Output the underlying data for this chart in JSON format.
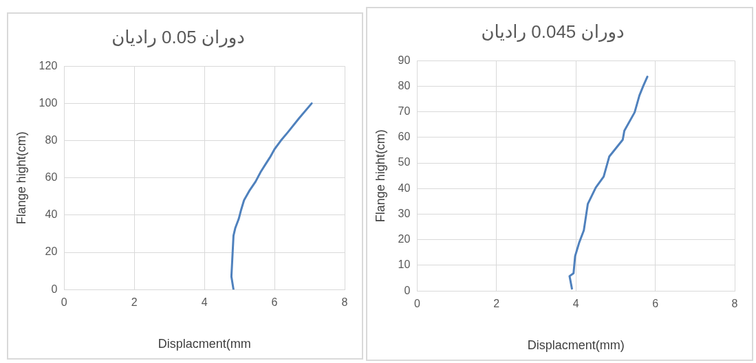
{
  "chart_data": [
    {
      "type": "line",
      "title": "دوران 0.05 رادیان",
      "xlabel": "Displacment(mm",
      "ylabel": "Flange hight(cm)",
      "xlim": [
        0,
        8
      ],
      "xticks": [
        0,
        2,
        4,
        6,
        8
      ],
      "ylim": [
        0,
        120
      ],
      "yticks": [
        0,
        20,
        40,
        60,
        80,
        100,
        120
      ],
      "grid": true,
      "legend": false,
      "marker": "none",
      "line_style": "solid",
      "series": [
        {
          "color": "#4f81bd",
          "x": [
            4.83,
            4.77,
            4.83,
            4.88,
            4.98,
            5.05,
            5.13,
            5.28,
            5.46,
            5.6,
            5.75,
            5.87,
            6.0,
            6.18,
            6.38,
            6.7,
            7.06
          ],
          "values": [
            0,
            7,
            29,
            33,
            38,
            43,
            48,
            53,
            58,
            63,
            67.5,
            71,
            75.4,
            80,
            84.5,
            92,
            100
          ]
        }
      ]
    },
    {
      "type": "line",
      "title": "دوران 0.045 رادیان",
      "xlabel": "Displacment(mm)",
      "ylabel": "Flange hight(cm)",
      "xlim": [
        0,
        8
      ],
      "xticks": [
        0,
        2,
        4,
        6,
        8
      ],
      "ylim": [
        0,
        90
      ],
      "yticks": [
        0,
        10,
        20,
        30,
        40,
        50,
        60,
        70,
        80,
        90
      ],
      "grid": true,
      "legend": false,
      "marker": "none",
      "line_style": "solid",
      "series": [
        {
          "color": "#4f81bd",
          "x": [
            3.9,
            3.84,
            3.94,
            3.98,
            4.08,
            4.2,
            4.3,
            4.5,
            4.7,
            4.84,
            5.18,
            5.22,
            5.48,
            5.6,
            5.7,
            5.8
          ],
          "values": [
            0.9,
            5.8,
            6.9,
            13.6,
            18.8,
            23.7,
            34,
            40.4,
            44.7,
            52.5,
            59.1,
            62.6,
            69.8,
            76.4,
            80.2,
            83.7
          ]
        }
      ]
    }
  ]
}
